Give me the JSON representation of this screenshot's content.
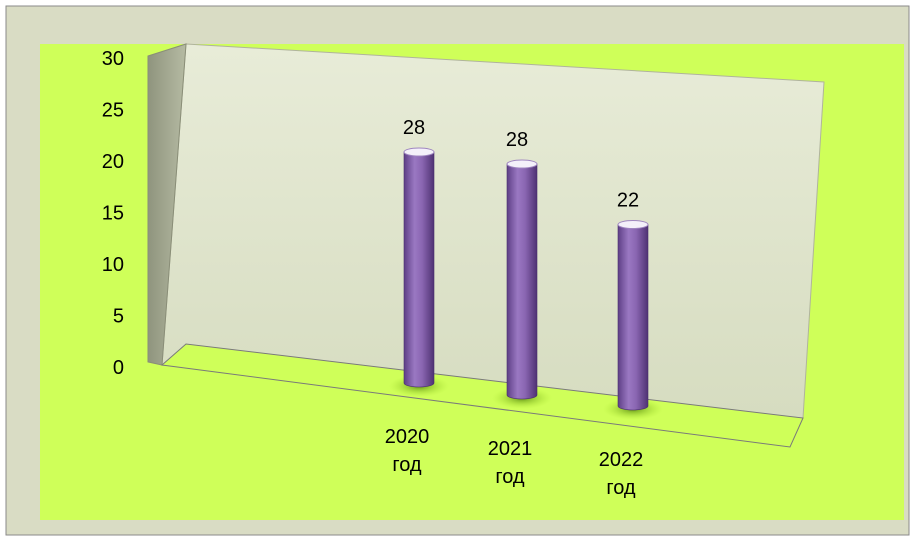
{
  "chart_data": {
    "type": "bar",
    "style": "3d-cylinder",
    "categories": [
      "2020 год",
      "2021 год",
      "2022 год"
    ],
    "category_lines": [
      [
        "2020",
        "год"
      ],
      [
        "2021",
        "год"
      ],
      [
        "2022",
        "год"
      ]
    ],
    "values": [
      28,
      28,
      22
    ],
    "data_labels": [
      "28",
      "28",
      "22"
    ],
    "y_ticks": [
      "0",
      "5",
      "10",
      "15",
      "20",
      "25",
      "30"
    ],
    "ylim": [
      0,
      30
    ],
    "grid": false,
    "legend": "none",
    "colors": {
      "outer_background": "#d9dcc4",
      "plot_area_background": "#cfff59",
      "back_wall": "#dfe5c9",
      "side_wall": "#a8ad95",
      "floor": "#cfff59",
      "bar_fill": "#8d67b3",
      "bar_dark": "#5b3a85",
      "bar_top": "#ffffff",
      "bar_shadow": "#78a800"
    }
  }
}
